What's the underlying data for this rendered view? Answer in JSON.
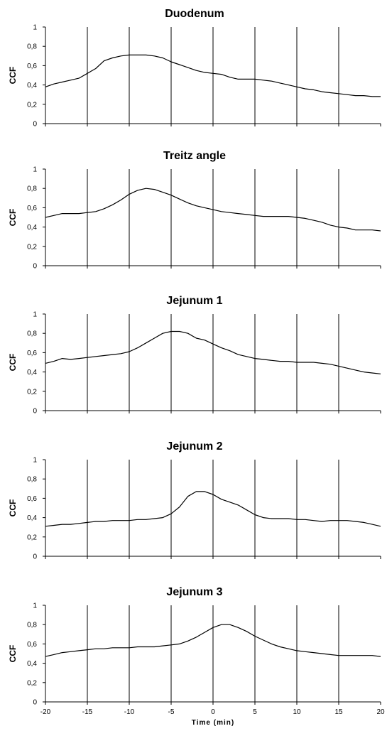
{
  "chart_data": [
    {
      "type": "line",
      "title": "Duodenum",
      "ylabel": "CCF",
      "xlabel": "",
      "xlim": [
        -20,
        20
      ],
      "ylim": [
        0,
        1
      ],
      "xticks": [
        -20,
        -15,
        -10,
        -5,
        0,
        5,
        10,
        15,
        20
      ],
      "yticks": [
        "0",
        "0,2",
        "0,4",
        "0,6",
        "0,8",
        "1"
      ],
      "grid": "vertical",
      "x": [
        -20,
        -19,
        -18,
        -17,
        -16,
        -15,
        -14,
        -13,
        -12,
        -11,
        -10,
        -9,
        -8,
        -7,
        -6,
        -5,
        -4,
        -3,
        -2,
        -1,
        0,
        1,
        2,
        3,
        4,
        5,
        6,
        7,
        8,
        9,
        10,
        11,
        12,
        13,
        14,
        15,
        16,
        17,
        18,
        19,
        20
      ],
      "values": [
        0.38,
        0.41,
        0.43,
        0.45,
        0.47,
        0.52,
        0.57,
        0.65,
        0.68,
        0.7,
        0.71,
        0.71,
        0.71,
        0.7,
        0.68,
        0.64,
        0.61,
        0.58,
        0.55,
        0.53,
        0.52,
        0.51,
        0.48,
        0.46,
        0.46,
        0.46,
        0.45,
        0.44,
        0.42,
        0.4,
        0.38,
        0.36,
        0.35,
        0.33,
        0.32,
        0.31,
        0.3,
        0.29,
        0.29,
        0.28,
        0.28
      ]
    },
    {
      "type": "line",
      "title": "Treitz angle",
      "ylabel": "CCF",
      "xlabel": "",
      "xlim": [
        -20,
        20
      ],
      "ylim": [
        0,
        1
      ],
      "xticks": [
        -20,
        -15,
        -10,
        -5,
        0,
        5,
        10,
        15,
        20
      ],
      "yticks": [
        "0",
        "0,2",
        "0,4",
        "0,6",
        "0,8",
        "1"
      ],
      "grid": "vertical",
      "x": [
        -20,
        -19,
        -18,
        -17,
        -16,
        -15,
        -14,
        -13,
        -12,
        -11,
        -10,
        -9,
        -8,
        -7,
        -6,
        -5,
        -4,
        -3,
        -2,
        -1,
        0,
        1,
        2,
        3,
        4,
        5,
        6,
        7,
        8,
        9,
        10,
        11,
        12,
        13,
        14,
        15,
        16,
        17,
        18,
        19,
        20
      ],
      "values": [
        0.5,
        0.52,
        0.54,
        0.54,
        0.54,
        0.55,
        0.56,
        0.59,
        0.63,
        0.68,
        0.74,
        0.78,
        0.8,
        0.79,
        0.76,
        0.73,
        0.69,
        0.65,
        0.62,
        0.6,
        0.58,
        0.56,
        0.55,
        0.54,
        0.53,
        0.52,
        0.51,
        0.51,
        0.51,
        0.51,
        0.5,
        0.49,
        0.47,
        0.45,
        0.42,
        0.4,
        0.39,
        0.37,
        0.37,
        0.37,
        0.36
      ]
    },
    {
      "type": "line",
      "title": "Jejunum 1",
      "ylabel": "CCF",
      "xlabel": "",
      "xlim": [
        -20,
        20
      ],
      "ylim": [
        0,
        1
      ],
      "xticks": [
        -20,
        -15,
        -10,
        -5,
        0,
        5,
        10,
        15,
        20
      ],
      "yticks": [
        "0",
        "0,2",
        "0,4",
        "0,6",
        "0,8",
        "1"
      ],
      "grid": "vertical",
      "x": [
        -20,
        -19,
        -18,
        -17,
        -16,
        -15,
        -14,
        -13,
        -12,
        -11,
        -10,
        -9,
        -8,
        -7,
        -6,
        -5,
        -4,
        -3,
        -2,
        -1,
        0,
        1,
        2,
        3,
        4,
        5,
        6,
        7,
        8,
        9,
        10,
        11,
        12,
        13,
        14,
        15,
        16,
        17,
        18,
        19,
        20
      ],
      "values": [
        0.49,
        0.51,
        0.54,
        0.53,
        0.54,
        0.55,
        0.56,
        0.57,
        0.58,
        0.59,
        0.61,
        0.65,
        0.7,
        0.75,
        0.8,
        0.82,
        0.82,
        0.8,
        0.75,
        0.73,
        0.69,
        0.65,
        0.62,
        0.58,
        0.56,
        0.54,
        0.53,
        0.52,
        0.51,
        0.51,
        0.5,
        0.5,
        0.5,
        0.49,
        0.48,
        0.46,
        0.44,
        0.42,
        0.4,
        0.39,
        0.38
      ]
    },
    {
      "type": "line",
      "title": "Jejunum 2",
      "ylabel": "CCF",
      "xlabel": "",
      "xlim": [
        -20,
        20
      ],
      "ylim": [
        0,
        1
      ],
      "xticks": [
        -20,
        -15,
        -10,
        -5,
        0,
        5,
        10,
        15,
        20
      ],
      "yticks": [
        "0",
        "0,2",
        "0,4",
        "0,6",
        "0,8",
        "1"
      ],
      "grid": "vertical",
      "x": [
        -20,
        -19,
        -18,
        -17,
        -16,
        -15,
        -14,
        -13,
        -12,
        -11,
        -10,
        -9,
        -8,
        -7,
        -6,
        -5,
        -4,
        -3,
        -2,
        -1,
        0,
        1,
        2,
        3,
        4,
        5,
        6,
        7,
        8,
        9,
        10,
        11,
        12,
        13,
        14,
        15,
        16,
        17,
        18,
        19,
        20
      ],
      "values": [
        0.31,
        0.32,
        0.33,
        0.33,
        0.34,
        0.35,
        0.36,
        0.36,
        0.37,
        0.37,
        0.37,
        0.38,
        0.38,
        0.39,
        0.4,
        0.44,
        0.51,
        0.62,
        0.67,
        0.67,
        0.64,
        0.59,
        0.56,
        0.53,
        0.48,
        0.43,
        0.4,
        0.39,
        0.39,
        0.39,
        0.38,
        0.38,
        0.37,
        0.36,
        0.37,
        0.37,
        0.37,
        0.36,
        0.35,
        0.33,
        0.31
      ]
    },
    {
      "type": "line",
      "title": "Jejunum 3",
      "ylabel": "CCF",
      "xlabel": "Time (min)",
      "xlim": [
        -20,
        20
      ],
      "ylim": [
        0,
        1
      ],
      "xticks": [
        -20,
        -15,
        -10,
        -5,
        0,
        5,
        10,
        15,
        20
      ],
      "yticks": [
        "0",
        "0,2",
        "0,4",
        "0,6",
        "0,8",
        "1"
      ],
      "grid": "vertical",
      "x": [
        -20,
        -19,
        -18,
        -17,
        -16,
        -15,
        -14,
        -13,
        -12,
        -11,
        -10,
        -9,
        -8,
        -7,
        -6,
        -5,
        -4,
        -3,
        -2,
        -1,
        0,
        1,
        2,
        3,
        4,
        5,
        6,
        7,
        8,
        9,
        10,
        11,
        12,
        13,
        14,
        15,
        16,
        17,
        18,
        19,
        20
      ],
      "values": [
        0.47,
        0.49,
        0.51,
        0.52,
        0.53,
        0.54,
        0.55,
        0.55,
        0.56,
        0.56,
        0.56,
        0.57,
        0.57,
        0.57,
        0.58,
        0.59,
        0.6,
        0.63,
        0.67,
        0.72,
        0.77,
        0.8,
        0.8,
        0.77,
        0.73,
        0.68,
        0.64,
        0.6,
        0.57,
        0.55,
        0.53,
        0.52,
        0.51,
        0.5,
        0.49,
        0.48,
        0.48,
        0.48,
        0.48,
        0.48,
        0.47
      ]
    }
  ]
}
